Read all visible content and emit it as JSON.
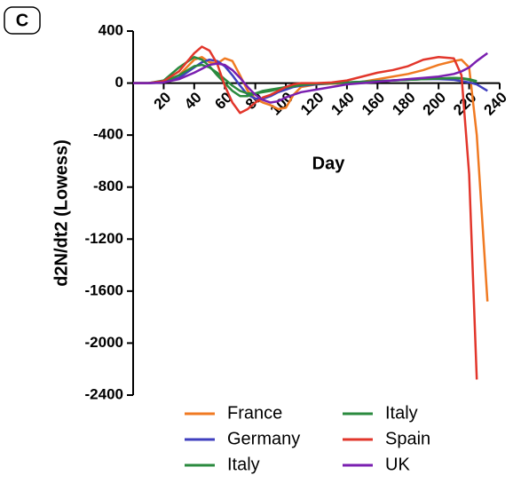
{
  "panel_label": "C",
  "chart_data": {
    "type": "line",
    "x_label": "Day",
    "y_label": "d2N/dt2 (Lowess)",
    "x": [
      0,
      10,
      20,
      30,
      40,
      45,
      50,
      55,
      60,
      65,
      70,
      75,
      80,
      85,
      90,
      95,
      100,
      105,
      110,
      120,
      130,
      140,
      150,
      160,
      170,
      180,
      190,
      200,
      210,
      215,
      220,
      225,
      232
    ],
    "xlim": [
      0,
      240
    ],
    "xticks": [
      20,
      40,
      60,
      80,
      100,
      120,
      140,
      160,
      180,
      200,
      220,
      240
    ],
    "ylim": [
      -2400,
      400
    ],
    "yticks": [
      400,
      0,
      -400,
      -800,
      -1200,
      -1600,
      -2000,
      -2400
    ],
    "series": [
      {
        "name": "France",
        "color": "#f07a22",
        "values": [
          0,
          0,
          10,
          60,
          180,
          200,
          160,
          150,
          190,
          170,
          60,
          -60,
          -120,
          -150,
          -170,
          -200,
          -190,
          -90,
          -30,
          -10,
          -5,
          0,
          10,
          30,
          50,
          70,
          100,
          140,
          170,
          180,
          120,
          -400,
          -1680
        ]
      },
      {
        "name": "Germany",
        "color": "#3f3fbf",
        "values": [
          0,
          0,
          5,
          40,
          120,
          160,
          180,
          170,
          130,
          60,
          -20,
          -90,
          -120,
          -120,
          -100,
          -70,
          -50,
          -30,
          -20,
          -10,
          0,
          5,
          10,
          15,
          20,
          25,
          30,
          30,
          25,
          15,
          5,
          -10,
          -60
        ]
      },
      {
        "name": "Italy",
        "color": "#2a8a3e",
        "values": [
          0,
          0,
          20,
          120,
          200,
          180,
          130,
          60,
          0,
          -60,
          -100,
          -100,
          -80,
          -60,
          -50,
          -40,
          -30,
          -20,
          -10,
          -5,
          0,
          5,
          10,
          15,
          20,
          25,
          30,
          35,
          40,
          35,
          25,
          10,
          null
        ]
      },
      {
        "name": "Italy",
        "color": "#2a8a3e",
        "values": [
          0,
          0,
          10,
          60,
          130,
          140,
          120,
          80,
          30,
          -20,
          -60,
          -80,
          -80,
          -70,
          -60,
          -45,
          -35,
          -25,
          -15,
          -5,
          0,
          5,
          10,
          15,
          20,
          25,
          30,
          35,
          40,
          38,
          30,
          15,
          null
        ]
      },
      {
        "name": "Spain",
        "color": "#e2362b",
        "values": [
          0,
          0,
          15,
          90,
          230,
          280,
          250,
          150,
          -20,
          -150,
          -230,
          -200,
          -150,
          -110,
          -90,
          -60,
          -30,
          -10,
          0,
          0,
          5,
          20,
          50,
          80,
          100,
          130,
          180,
          200,
          190,
          60,
          -700,
          -2280,
          null
        ]
      },
      {
        "name": "UK",
        "color": "#7a1fb0",
        "values": [
          0,
          0,
          5,
          30,
          80,
          110,
          140,
          150,
          140,
          100,
          40,
          -30,
          -90,
          -130,
          -150,
          -140,
          -110,
          -90,
          -70,
          -50,
          -30,
          -10,
          0,
          10,
          20,
          30,
          40,
          50,
          70,
          90,
          120,
          170,
          230
        ]
      }
    ]
  }
}
